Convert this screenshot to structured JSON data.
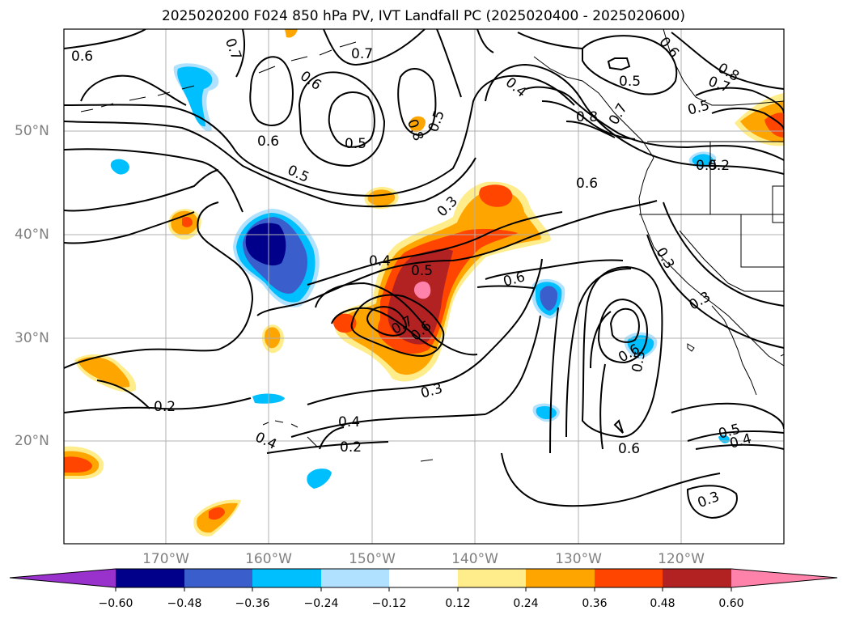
{
  "title": "2025020200 F024 850 hPa PV, IVT Landfall PC (2025020400 - 2025020600)",
  "lat_labels": [
    "50°N",
    "40°N",
    "30°N",
    "20°N"
  ],
  "lon_labels": [
    "170°W",
    "160°W",
    "150°W",
    "140°W",
    "130°W",
    "120°W"
  ],
  "colorbar": {
    "ticks": [
      "−0.60",
      "−0.48",
      "−0.36",
      "−0.24",
      "−0.12",
      "0.12",
      "0.24",
      "0.36",
      "0.48",
      "0.60"
    ],
    "colors": [
      "#9932cc",
      "#00008b",
      "#3a5fcd",
      "#00bfff",
      "#b0e2ff",
      "#ffffff",
      "#ffec8b",
      "#ffa500",
      "#ff4500",
      "#b22222",
      "#ff82ab"
    ]
  },
  "contour_labels": [
    "0.6",
    "0.7",
    "0.7",
    "0.6",
    "0.5",
    "0.6",
    "0.5",
    "0.4",
    "0.8",
    "0.8",
    "0.7",
    "0.5",
    "0.6",
    "0.5",
    "0.7",
    "0.8",
    "0.5",
    "0.6",
    "0.5",
    "0.3",
    "0.4",
    "0.5",
    "0.6",
    "0.7",
    "0.6",
    "0.2",
    "0.3",
    "0.3",
    "0.6",
    "0.5",
    "0.6",
    "0.2",
    "0.4",
    "0.4",
    "0.3",
    "0.2",
    "0.5",
    "0.4",
    "0.3"
  ]
}
